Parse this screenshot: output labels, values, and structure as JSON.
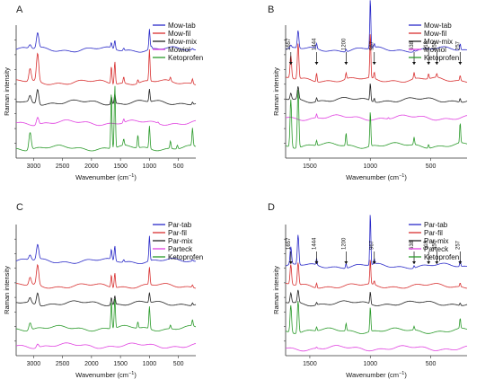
{
  "figure": {
    "ylabel": "Raman intensity",
    "xlabel_main": "Wavenumber (cm",
    "xlabel_sup": "−1",
    "xlabel_end": ")"
  },
  "panels": [
    {
      "letter": "A",
      "legend": [
        "Mow-tab",
        "Mow-fil",
        "Mow-mix",
        "Mowiol",
        "Ketoprofen"
      ]
    },
    {
      "letter": "B",
      "legend": [
        "Mow-tab",
        "Mow-fil",
        "Mow-mix",
        "Mowiol",
        "Ketoprofen"
      ]
    },
    {
      "letter": "C",
      "legend": [
        "Par-tab",
        "Par-fil",
        "Par-mix",
        "Parteck",
        "Ketoprofen"
      ]
    },
    {
      "letter": "D",
      "legend": [
        "Par-tab",
        "Par-fil",
        "Par-mix",
        "Parteck",
        "Ketoprofen"
      ]
    }
  ],
  "colors": [
    "#2a2ac8",
    "#d83030",
    "#222222",
    "#e040e0",
    "#2a9a2a"
  ],
  "chart_data": [
    {
      "type": "line",
      "panel": "A",
      "xlabel": "Wavenumber (cm−1)",
      "ylabel": "Raman intensity",
      "xlim": [
        3300,
        200
      ],
      "x_reversed": true,
      "xticks": [
        3000,
        2500,
        2000,
        1500,
        1000,
        500
      ],
      "series": [
        {
          "name": "Mow-tab",
          "baseline": 0.86,
          "peaks": [
            [
              2930,
              0.12
            ],
            [
              3060,
              0.03
            ],
            [
              1657,
              0.04
            ],
            [
              1597,
              0.07
            ],
            [
              1444,
              0.02
            ],
            [
              1000,
              0.16
            ],
            [
              967,
              0.02
            ],
            [
              257,
              0.01
            ]
          ]
        },
        {
          "name": "Mow-fil",
          "baseline": 0.6,
          "peaks": [
            [
              2930,
              0.22
            ],
            [
              3060,
              0.1
            ],
            [
              1657,
              0.14
            ],
            [
              1597,
              0.18
            ],
            [
              1444,
              0.05
            ],
            [
              1200,
              0.03
            ],
            [
              1000,
              0.25
            ],
            [
              638,
              0.03
            ],
            [
              257,
              0.04
            ]
          ]
        },
        {
          "name": "Mow-mix",
          "baseline": 0.44,
          "peaks": [
            [
              2930,
              0.12
            ],
            [
              3060,
              0.05
            ],
            [
              1657,
              0.06
            ],
            [
              1597,
              0.08
            ],
            [
              1000,
              0.1
            ],
            [
              257,
              0.02
            ]
          ]
        },
        {
          "name": "Mowiol",
          "baseline": 0.28,
          "peaks": [
            [
              2930,
              0.06
            ],
            [
              1444,
              0.03
            ],
            [
              850,
              0.01
            ]
          ]
        },
        {
          "name": "Ketoprofen",
          "baseline": 0.08,
          "peaks": [
            [
              3060,
              0.14
            ],
            [
              1657,
              0.45
            ],
            [
              1597,
              0.5
            ],
            [
              1444,
              0.05
            ],
            [
              1200,
              0.1
            ],
            [
              1000,
              0.18
            ],
            [
              638,
              0.06
            ],
            [
              518,
              0.03
            ],
            [
              257,
              0.14
            ]
          ]
        }
      ]
    },
    {
      "type": "line",
      "panel": "B",
      "xlabel": "Wavenumber (cm−1)",
      "ylabel": "Raman intensity",
      "xlim": [
        1700,
        200
      ],
      "x_reversed": true,
      "xticks": [
        1500,
        1000,
        500
      ],
      "annotations": [
        "1657",
        "1444",
        "1200",
        "967",
        "638",
        "518",
        "450",
        "257"
      ],
      "series": [
        {
          "name": "Mow-tab",
          "baseline": 0.86,
          "peaks": [
            [
              1657,
              0.02
            ],
            [
              1597,
              0.14
            ],
            [
              1444,
              0.04
            ],
            [
              1200,
              0.02
            ],
            [
              1000,
              0.4
            ],
            [
              967,
              0.03
            ],
            [
              638,
              0.01
            ],
            [
              257,
              0.05
            ]
          ]
        },
        {
          "name": "Mow-fil",
          "baseline": 0.62,
          "peaks": [
            [
              1657,
              0.18
            ],
            [
              1597,
              0.28
            ],
            [
              1444,
              0.07
            ],
            [
              1200,
              0.05
            ],
            [
              1000,
              0.36
            ],
            [
              967,
              0.05
            ],
            [
              638,
              0.05
            ],
            [
              518,
              0.04
            ],
            [
              450,
              0.03
            ],
            [
              257,
              0.04
            ]
          ]
        },
        {
          "name": "Mow-mix",
          "baseline": 0.46,
          "peaks": [
            [
              1657,
              0.05
            ],
            [
              1597,
              0.1
            ],
            [
              1444,
              0.03
            ],
            [
              1000,
              0.14
            ],
            [
              967,
              0.03
            ],
            [
              257,
              0.03
            ]
          ]
        },
        {
          "name": "Mowiol",
          "baseline": 0.32,
          "peaks": [
            [
              1444,
              0.03
            ],
            [
              850,
              0.01
            ]
          ]
        },
        {
          "name": "Ketoprofen",
          "baseline": 0.1,
          "peaks": [
            [
              1657,
              0.38
            ],
            [
              1597,
              0.46
            ],
            [
              1444,
              0.04
            ],
            [
              1200,
              0.1
            ],
            [
              1000,
              0.28
            ],
            [
              638,
              0.06
            ],
            [
              518,
              0.03
            ],
            [
              257,
              0.16
            ]
          ]
        }
      ]
    },
    {
      "type": "line",
      "panel": "C",
      "xlabel": "Wavenumber (cm−1)",
      "ylabel": "Raman intensity",
      "xlim": [
        3300,
        200
      ],
      "x_reversed": true,
      "xticks": [
        3000,
        2500,
        2000,
        1500,
        1000,
        500
      ],
      "series": [
        {
          "name": "Par-tab",
          "baseline": 0.76,
          "peaks": [
            [
              2930,
              0.12
            ],
            [
              3060,
              0.04
            ],
            [
              1657,
              0.08
            ],
            [
              1597,
              0.12
            ],
            [
              1444,
              0.02
            ],
            [
              1000,
              0.2
            ],
            [
              257,
              0.01
            ]
          ]
        },
        {
          "name": "Par-fil",
          "baseline": 0.56,
          "peaks": [
            [
              2930,
              0.16
            ],
            [
              3060,
              0.06
            ],
            [
              1657,
              0.1
            ],
            [
              1597,
              0.12
            ],
            [
              1000,
              0.14
            ],
            [
              257,
              0.02
            ]
          ]
        },
        {
          "name": "Par-mix",
          "baseline": 0.42,
          "peaks": [
            [
              2930,
              0.1
            ],
            [
              3060,
              0.04
            ],
            [
              1657,
              0.06
            ],
            [
              1597,
              0.07
            ],
            [
              1000,
              0.08
            ],
            [
              257,
              0.02
            ]
          ]
        },
        {
          "name": "Parteck",
          "baseline": 0.08,
          "peaks": [
            [
              2930,
              0.03
            ]
          ]
        },
        {
          "name": "Ketoprofen",
          "baseline": 0.22,
          "peaks": [
            [
              3060,
              0.06
            ],
            [
              1657,
              0.22
            ],
            [
              1597,
              0.24
            ],
            [
              1200,
              0.05
            ],
            [
              1000,
              0.18
            ],
            [
              638,
              0.03
            ],
            [
              257,
              0.05
            ]
          ]
        }
      ]
    },
    {
      "type": "line",
      "panel": "D",
      "xlabel": "Wavenumber (cm−1)",
      "ylabel": "Raman intensity",
      "xlim": [
        1700,
        200
      ],
      "x_reversed": true,
      "xticks": [
        1500,
        1000,
        500
      ],
      "annotations": [
        "1657",
        "1444",
        "1200",
        "967",
        "638",
        "518",
        "450",
        "257"
      ],
      "series": [
        {
          "name": "Par-tab",
          "baseline": 0.72,
          "peaks": [
            [
              1657,
              0.14
            ],
            [
              1597,
              0.24
            ],
            [
              1444,
              0.05
            ],
            [
              1200,
              0.04
            ],
            [
              1000,
              0.42
            ],
            [
              967,
              0.04
            ],
            [
              638,
              0.02
            ],
            [
              257,
              0.05
            ]
          ]
        },
        {
          "name": "Par-fil",
          "baseline": 0.56,
          "peaks": [
            [
              1657,
              0.16
            ],
            [
              1597,
              0.18
            ],
            [
              1444,
              0.04
            ],
            [
              1000,
              0.2
            ],
            [
              967,
              0.03
            ],
            [
              257,
              0.03
            ]
          ]
        },
        {
          "name": "Par-mix",
          "baseline": 0.42,
          "peaks": [
            [
              1657,
              0.08
            ],
            [
              1597,
              0.1
            ],
            [
              1444,
              0.02
            ],
            [
              1000,
              0.1
            ],
            [
              257,
              0.02
            ]
          ]
        },
        {
          "name": "Parteck",
          "baseline": 0.06,
          "peaks": [
            [
              1444,
              0.01
            ]
          ]
        },
        {
          "name": "Ketoprofen",
          "baseline": 0.2,
          "peaks": [
            [
              1657,
              0.22
            ],
            [
              1597,
              0.26
            ],
            [
              1444,
              0.03
            ],
            [
              1200,
              0.06
            ],
            [
              1000,
              0.2
            ],
            [
              638,
              0.03
            ],
            [
              257,
              0.08
            ]
          ]
        }
      ]
    }
  ]
}
